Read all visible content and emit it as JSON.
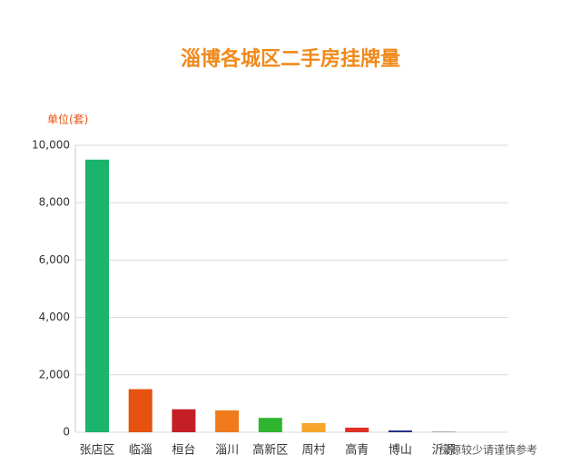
{
  "chart_data": {
    "type": "bar",
    "title": "淄博各城区二手房挂牌量",
    "y_label": "单位(套)",
    "categories": [
      "张店区",
      "临淄",
      "桓台",
      "淄川",
      "高新区",
      "周村",
      "高青",
      "博山",
      "沂源"
    ],
    "values": [
      9500,
      1500,
      800,
      760,
      500,
      320,
      160,
      60,
      20
    ],
    "colors": [
      "#1cb36c",
      "#e6520f",
      "#c41f26",
      "#f07b1c",
      "#2fb52f",
      "#f6a52a",
      "#e0302a",
      "#1d2a7e",
      "#888888"
    ],
    "annotation": "房源较少请谨慎参考",
    "ylim": [
      0,
      10000
    ],
    "yticks": [
      0,
      {
        "value": 2000,
        "label": "2,000"
      },
      {
        "value": 4000,
        "label": "4,000"
      },
      {
        "value": 6000,
        "label": "6,000"
      },
      {
        "value": 8000,
        "label": "8,000"
      },
      {
        "value": 10000,
        "label": "10,000"
      }
    ],
    "grid": true
  }
}
